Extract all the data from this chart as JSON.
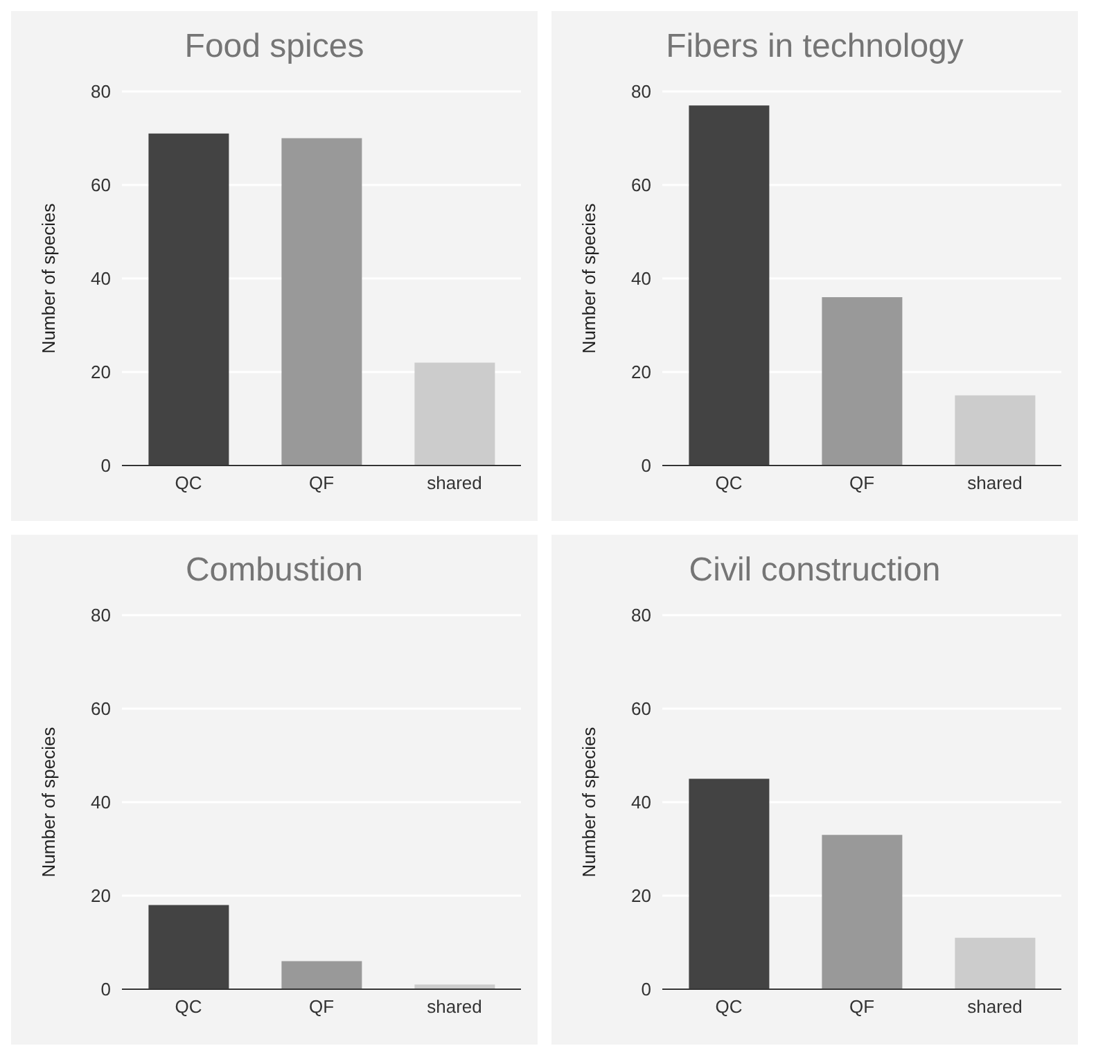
{
  "chart_data": [
    {
      "type": "bar",
      "title": "Food spices",
      "ylabel": "Number of species",
      "categories": [
        "QC",
        "QF",
        "shared"
      ],
      "values": [
        71,
        70,
        22
      ],
      "colors": [
        "#434343",
        "#999999",
        "#cccccc"
      ],
      "ylim": [
        0,
        80
      ],
      "yticks": [
        0,
        20,
        40,
        60,
        80
      ],
      "grid": "y"
    },
    {
      "type": "bar",
      "title": "Fibers in technology",
      "ylabel": "Number of species",
      "categories": [
        "QC",
        "QF",
        "shared"
      ],
      "values": [
        77,
        36,
        15
      ],
      "colors": [
        "#434343",
        "#999999",
        "#cccccc"
      ],
      "ylim": [
        0,
        80
      ],
      "yticks": [
        0,
        20,
        40,
        60,
        80
      ],
      "grid": "y"
    },
    {
      "type": "bar",
      "title": "Combustion",
      "ylabel": "Number of species",
      "categories": [
        "QC",
        "QF",
        "shared"
      ],
      "values": [
        18,
        6,
        1
      ],
      "colors": [
        "#434343",
        "#999999",
        "#cccccc"
      ],
      "ylim": [
        0,
        80
      ],
      "yticks": [
        0,
        20,
        40,
        60,
        80
      ],
      "grid": "y"
    },
    {
      "type": "bar",
      "title": "Civil construction",
      "ylabel": "Number of species",
      "categories": [
        "QC",
        "QF",
        "shared"
      ],
      "values": [
        45,
        33,
        11
      ],
      "colors": [
        "#434343",
        "#999999",
        "#cccccc"
      ],
      "ylim": [
        0,
        80
      ],
      "yticks": [
        0,
        20,
        40,
        60,
        80
      ],
      "grid": "y"
    }
  ]
}
